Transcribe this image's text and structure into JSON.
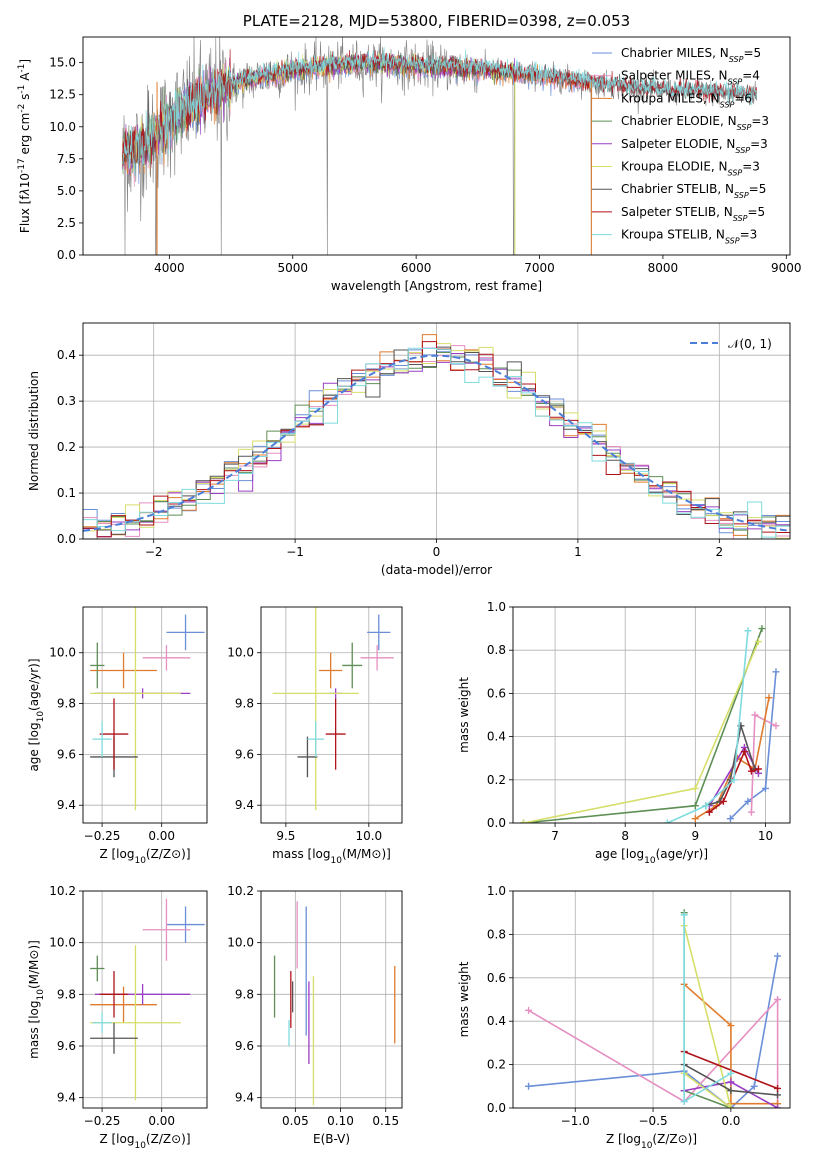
{
  "figure_title": "PLATE=2128, MJD=53800, FIBERID=0398, z=0.053",
  "colors": {
    "Chabrier MILES": "#6a8fd8",
    "Salpeter MILES": "#e58fc2",
    "Kroupa MILES": "#e07b2c",
    "Chabrier ELODIE": "#5e8f55",
    "Salpeter ELODIE": "#9a3fc4",
    "Kroupa ELODIE": "#d6de6a",
    "Chabrier STELIB": "#555555",
    "Salpeter STELIB": "#b0121a",
    "Kroupa STELIB": "#7fdbdf",
    "data_gray": "#808080",
    "normal": "#4a7ed8"
  },
  "chart_data": [
    {
      "id": "spectrum",
      "type": "line",
      "title": "PLATE=2128, MJD=53800, FIBERID=0398, z=0.053",
      "xlabel": "wavelength [Angstrom, rest frame]",
      "ylabel": "Flux [f$_\\lambda$10$^{-17}$ erg cm$^{-2}$ s$^{-1}$ A$^{-1}$]",
      "xlim": [
        3300,
        9030
      ],
      "ylim": [
        0,
        17
      ],
      "xticks": [
        4000,
        5000,
        6000,
        7000,
        8000,
        9000
      ],
      "yticks": [
        0.0,
        2.5,
        5.0,
        7.5,
        10.0,
        12.5,
        15.0
      ],
      "ytick_labels": [
        "0.0",
        "2.5",
        "5.0",
        "7.5",
        "10.0",
        "12.5",
        "15.0"
      ],
      "grid": false,
      "legend_position": "top-right",
      "legend": [
        {
          "name": "Chabrier MILES",
          "label": "Chabrier MILES, N",
          "sub": "SSP",
          "tail": "=5"
        },
        {
          "name": "Salpeter MILES",
          "label": "Salpeter MILES, N",
          "sub": "SSP",
          "tail": "=4"
        },
        {
          "name": "Kroupa MILES",
          "label": "Kroupa MILES, N",
          "sub": "SSP",
          "tail": "=6"
        },
        {
          "name": "Chabrier ELODIE",
          "label": "Chabrier ELODIE, N",
          "sub": "SSP",
          "tail": "=3"
        },
        {
          "name": "Salpeter ELODIE",
          "label": "Salpeter ELODIE, N",
          "sub": "SSP",
          "tail": "=3"
        },
        {
          "name": "Kroupa ELODIE",
          "label": "Kroupa ELODIE, N",
          "sub": "SSP",
          "tail": "=3"
        },
        {
          "name": "Chabrier STELIB",
          "label": "Chabrier STELIB, N",
          "sub": "SSP",
          "tail": "=5"
        },
        {
          "name": "Salpeter STELIB",
          "label": "Salpeter STELIB, N",
          "sub": "SSP",
          "tail": "=5"
        },
        {
          "name": "Kroupa STELIB",
          "label": "Kroupa STELIB, N",
          "sub": "SSP",
          "tail": "=3"
        }
      ],
      "continuum": {
        "x": [
          3620,
          3700,
          3800,
          3900,
          4000,
          4100,
          4200,
          4300,
          4400,
          4500,
          4700,
          4900,
          5100,
          5300,
          5500,
          5700,
          5900,
          6100,
          6300,
          6500,
          6700,
          6900,
          7100,
          7300,
          7500,
          7700,
          7900,
          8100,
          8300,
          8500,
          8750
        ],
        "y": [
          7.8,
          8.0,
          8.6,
          9.5,
          10.4,
          11.2,
          11.9,
          12.3,
          12.8,
          13.2,
          13.8,
          14.2,
          14.5,
          14.7,
          14.9,
          14.9,
          14.8,
          14.7,
          14.6,
          14.5,
          14.3,
          14.1,
          13.9,
          13.6,
          13.3,
          13.1,
          12.9,
          12.8,
          12.7,
          12.6,
          12.5
        ]
      },
      "data_dropouts": [
        3640,
        3890,
        4420,
        5280,
        6790,
        7420
      ]
    },
    {
      "id": "residuals",
      "type": "histogram",
      "xlabel": "(data-model)/error",
      "ylabel": "Normed distribution",
      "xlim": [
        -2.5,
        2.5
      ],
      "ylim": [
        0,
        0.47
      ],
      "xticks": [
        -2,
        -1,
        0,
        1,
        2
      ],
      "xtick_labels": [
        "−2",
        "−1",
        "0",
        "1",
        "2"
      ],
      "yticks": [
        0.0,
        0.1,
        0.2,
        0.3,
        0.4
      ],
      "ytick_labels": [
        "0.0",
        "0.1",
        "0.2",
        "0.3",
        "0.4"
      ],
      "grid": true,
      "legend_position": "top-right",
      "legend_label": "𝒩(0, 1)",
      "bin_width": 0.1,
      "model": "normal(0,1)"
    },
    {
      "id": "age_vs_Z",
      "type": "errorbar",
      "xlabel": "Z [log$_{10}$(Z/Z$_\\odot$)]",
      "ylabel": "age  [log$_{10}$(age/yr)]",
      "xlim": [
        -0.33,
        0.19
      ],
      "ylim": [
        9.33,
        10.18
      ],
      "xticks": [
        -0.25,
        0.0
      ],
      "xtick_labels": [
        "−0.25",
        "0.00"
      ],
      "yticks": [
        9.4,
        9.6,
        9.8,
        10.0
      ],
      "ytick_labels": [
        "9.4",
        "9.6",
        "9.8",
        "10.0"
      ],
      "grid": true,
      "points": [
        {
          "model": "Chabrier MILES",
          "x": 0.1,
          "xerr": 0.08,
          "y": 10.08,
          "yerr": 0.07
        },
        {
          "model": "Salpeter MILES",
          "x": 0.02,
          "xerr": 0.1,
          "y": 9.98,
          "yerr": 0.05
        },
        {
          "model": "Kroupa MILES",
          "x": -0.16,
          "xerr": 0.14,
          "y": 9.93,
          "yerr": 0.07
        },
        {
          "model": "Chabrier ELODIE",
          "x": -0.27,
          "xerr": 0.03,
          "y": 9.95,
          "yerr": 0.09
        },
        {
          "model": "Salpeter ELODIE",
          "x": -0.08,
          "xerr": 0.2,
          "y": 9.84,
          "yerr": 0.02
        },
        {
          "model": "Kroupa ELODIE",
          "x": -0.11,
          "xerr": 0.19,
          "y": 9.84,
          "yerr": 0.46
        },
        {
          "model": "Chabrier STELIB",
          "x": -0.2,
          "xerr": 0.1,
          "y": 9.59,
          "yerr": 0.08
        },
        {
          "model": "Salpeter STELIB",
          "x": -0.2,
          "xerr": 0.06,
          "y": 9.68,
          "yerr": 0.14
        },
        {
          "model": "Kroupa STELIB",
          "x": -0.25,
          "xerr": 0.04,
          "y": 9.66,
          "yerr": 0.07
        }
      ]
    },
    {
      "id": "age_vs_mass",
      "type": "errorbar",
      "xlabel": "mass [log$_{10}$(M/M$_\\odot$)]",
      "ylabel": "",
      "xlim": [
        9.35,
        10.2
      ],
      "ylim": [
        9.33,
        10.18
      ],
      "xticks": [
        9.5,
        10.0
      ],
      "xtick_labels": [
        "9.5",
        "10.0"
      ],
      "yticks": [
        9.4,
        9.6,
        9.8,
        10.0
      ],
      "ytick_labels": [
        "9.4",
        "9.6",
        "9.8",
        "10.0"
      ],
      "grid": true,
      "points": [
        {
          "model": "Chabrier MILES",
          "x": 10.06,
          "xerr": 0.07,
          "y": 10.08,
          "yerr": 0.07
        },
        {
          "model": "Salpeter MILES",
          "x": 10.05,
          "xerr": 0.1,
          "y": 9.98,
          "yerr": 0.05
        },
        {
          "model": "Kroupa MILES",
          "x": 9.77,
          "xerr": 0.07,
          "y": 9.93,
          "yerr": 0.07
        },
        {
          "model": "Chabrier ELODIE",
          "x": 9.9,
          "xerr": 0.06,
          "y": 9.95,
          "yerr": 0.09
        },
        {
          "model": "Salpeter ELODIE",
          "x": 9.8,
          "xerr": 0.04,
          "y": 9.84,
          "yerr": 0.02
        },
        {
          "model": "Kroupa ELODIE",
          "x": 9.68,
          "xerr": 0.26,
          "y": 9.84,
          "yerr": 0.46
        },
        {
          "model": "Chabrier STELIB",
          "x": 9.63,
          "xerr": 0.06,
          "y": 9.59,
          "yerr": 0.08
        },
        {
          "model": "Salpeter STELIB",
          "x": 9.8,
          "xerr": 0.06,
          "y": 9.68,
          "yerr": 0.14
        },
        {
          "model": "Kroupa STELIB",
          "x": 9.68,
          "xerr": 0.05,
          "y": 9.66,
          "yerr": 0.07
        }
      ]
    },
    {
      "id": "weight_vs_age",
      "type": "line",
      "xlabel": "age  [log$_{10}$(age/yr)]",
      "ylabel": "mass weight",
      "xlim": [
        6.4,
        10.35
      ],
      "ylim": [
        0,
        1.0
      ],
      "xticks": [
        7,
        8,
        9,
        10
      ],
      "xtick_labels": [
        "7",
        "8",
        "9",
        "10"
      ],
      "yticks": [
        0.0,
        0.2,
        0.4,
        0.6,
        0.8,
        1.0
      ],
      "ytick_labels": [
        "0.0",
        "0.2",
        "0.4",
        "0.6",
        "0.8",
        "1.0"
      ],
      "grid": true,
      "series": [
        {
          "model": "Chabrier MILES",
          "x": [
            9.5,
            9.75,
            10.0,
            10.15
          ],
          "y": [
            0.02,
            0.1,
            0.16,
            0.7
          ]
        },
        {
          "model": "Salpeter MILES",
          "x": [
            9.8,
            9.85,
            10.15
          ],
          "y": [
            0.05,
            0.5,
            0.45
          ]
        },
        {
          "model": "Kroupa MILES",
          "x": [
            9.0,
            9.3,
            9.6,
            9.85,
            10.05
          ],
          "y": [
            0.02,
            0.08,
            0.3,
            0.25,
            0.58
          ]
        },
        {
          "model": "Chabrier ELODIE",
          "x": [
            6.55,
            9.0,
            9.95
          ],
          "y": [
            0.0,
            0.08,
            0.9
          ]
        },
        {
          "model": "Salpeter ELODIE",
          "x": [
            9.2,
            9.7,
            9.9
          ],
          "y": [
            0.08,
            0.35,
            0.23
          ]
        },
        {
          "model": "Kroupa ELODIE",
          "x": [
            6.55,
            9.0,
            9.9
          ],
          "y": [
            0.0,
            0.16,
            0.84
          ]
        },
        {
          "model": "Chabrier STELIB",
          "x": [
            9.15,
            9.35,
            9.5,
            9.65,
            9.85
          ],
          "y": [
            0.08,
            0.1,
            0.2,
            0.45,
            0.25
          ]
        },
        {
          "model": "Salpeter STELIB",
          "x": [
            9.2,
            9.4,
            9.7,
            9.8,
            9.9
          ],
          "y": [
            0.05,
            0.1,
            0.33,
            0.24,
            0.25
          ]
        },
        {
          "model": "Kroupa STELIB",
          "x": [
            8.6,
            9.15,
            9.55,
            9.75
          ],
          "y": [
            0.0,
            0.08,
            0.2,
            0.89
          ]
        }
      ]
    },
    {
      "id": "mass_vs_Z",
      "type": "errorbar",
      "xlabel": "Z [log$_{10}$(Z/Z$_\\odot$)]",
      "ylabel": "mass [log$_{10}$(M/M$_\\odot$)]",
      "xlim": [
        -0.33,
        0.19
      ],
      "ylim": [
        9.36,
        10.2
      ],
      "xticks": [
        -0.25,
        0.0
      ],
      "xtick_labels": [
        "−0.25",
        "0.00"
      ],
      "yticks": [
        9.4,
        9.6,
        9.8,
        10.0,
        10.2
      ],
      "ytick_labels": [
        "9.4",
        "9.6",
        "9.8",
        "10.0",
        "10.2"
      ],
      "grid": true,
      "points": [
        {
          "model": "Chabrier MILES",
          "x": 0.1,
          "xerr": 0.08,
          "y": 10.07,
          "yerr": 0.07
        },
        {
          "model": "Salpeter MILES",
          "x": 0.02,
          "xerr": 0.1,
          "y": 10.05,
          "yerr": 0.12
        },
        {
          "model": "Kroupa MILES",
          "x": -0.16,
          "xerr": 0.14,
          "y": 9.76,
          "yerr": 0.07
        },
        {
          "model": "Chabrier ELODIE",
          "x": -0.27,
          "xerr": 0.03,
          "y": 9.9,
          "yerr": 0.05
        },
        {
          "model": "Salpeter ELODIE",
          "x": -0.08,
          "xerr": 0.2,
          "y": 9.8,
          "yerr": 0.04
        },
        {
          "model": "Kroupa ELODIE",
          "x": -0.11,
          "xerr": 0.19,
          "y": 9.69,
          "yerr": 0.3
        },
        {
          "model": "Chabrier STELIB",
          "x": -0.2,
          "xerr": 0.1,
          "y": 9.63,
          "yerr": 0.06
        },
        {
          "model": "Salpeter STELIB",
          "x": -0.2,
          "xerr": 0.06,
          "y": 9.8,
          "yerr": 0.09
        },
        {
          "model": "Kroupa STELIB",
          "x": -0.25,
          "xerr": 0.04,
          "y": 9.69,
          "yerr": 0.04
        }
      ]
    },
    {
      "id": "mass_vs_EBV",
      "type": "errorbar",
      "xlabel": "E(B-V)",
      "ylabel": "",
      "xlim": [
        0.012,
        0.168
      ],
      "ylim": [
        9.36,
        10.2
      ],
      "xticks": [
        0.05,
        0.1,
        0.15
      ],
      "xtick_labels": [
        "0.05",
        "0.10",
        "0.15"
      ],
      "yticks": [
        9.4,
        9.6,
        9.8,
        10.0,
        10.2
      ],
      "ytick_labels": [
        "9.4",
        "9.6",
        "9.8",
        "10.0",
        "10.2"
      ],
      "grid": true,
      "points": [
        {
          "model": "Chabrier MILES",
          "x": 0.062,
          "y": 9.89,
          "yerr": 0.25
        },
        {
          "model": "Salpeter MILES",
          "x": 0.052,
          "y": 10.03,
          "yerr": 0.13
        },
        {
          "model": "Kroupa MILES",
          "x": 0.16,
          "y": 9.76,
          "yerr": 0.15
        },
        {
          "model": "Chabrier ELODIE",
          "x": 0.027,
          "y": 9.83,
          "yerr": 0.12
        },
        {
          "model": "Salpeter ELODIE",
          "x": 0.065,
          "y": 9.69,
          "yerr": 0.16
        },
        {
          "model": "Kroupa ELODIE",
          "x": 0.07,
          "y": 9.62,
          "yerr": 0.25
        },
        {
          "model": "Chabrier STELIB",
          "x": 0.047,
          "y": 9.79,
          "yerr": 0.06
        },
        {
          "model": "Salpeter STELIB",
          "x": 0.045,
          "y": 9.78,
          "yerr": 0.11
        },
        {
          "model": "Kroupa STELIB",
          "x": 0.043,
          "y": 9.65,
          "yerr": 0.05
        }
      ]
    },
    {
      "id": "weight_vs_Z",
      "type": "line",
      "xlabel": "Z [log$_{10}$(Z/Z$_\\odot$)]",
      "ylabel": "mass weight",
      "xlim": [
        -1.4,
        0.38
      ],
      "ylim": [
        0,
        1.0
      ],
      "xticks": [
        -1.0,
        -0.5,
        0.0
      ],
      "xtick_labels": [
        "−1.0",
        "−0.5",
        "0.0"
      ],
      "yticks": [
        0.0,
        0.2,
        0.4,
        0.6,
        0.8,
        1.0
      ],
      "ytick_labels": [
        "0.0",
        "0.2",
        "0.4",
        "0.6",
        "0.8",
        "1.0"
      ],
      "grid": true,
      "series": [
        {
          "model": "Chabrier MILES",
          "x": [
            -1.3,
            -0.3,
            0.0,
            0.15,
            0.3
          ],
          "y": [
            0.1,
            0.17,
            0.0,
            0.1,
            0.7
          ]
        },
        {
          "model": "Salpeter MILES",
          "x": [
            -1.3,
            -0.3,
            0.3,
            0.3
          ],
          "y": [
            0.45,
            0.03,
            0.5,
            0.02
          ]
        },
        {
          "model": "Kroupa MILES",
          "x": [
            -0.3,
            0.0,
            0.0,
            0.3
          ],
          "y": [
            0.57,
            0.38,
            0.02,
            0.02
          ]
        },
        {
          "model": "Chabrier ELODIE",
          "x": [
            -0.3,
            -0.3,
            0.0
          ],
          "y": [
            0.9,
            0.08,
            0.0
          ]
        },
        {
          "model": "Salpeter ELODIE",
          "x": [
            -0.3,
            0.0,
            0.3
          ],
          "y": [
            0.08,
            0.12,
            0.0
          ]
        },
        {
          "model": "Kroupa ELODIE",
          "x": [
            -0.3,
            0.0,
            -0.3
          ],
          "y": [
            0.84,
            0.0,
            0.16
          ]
        },
        {
          "model": "Chabrier STELIB",
          "x": [
            -0.3,
            0.0,
            0.3
          ],
          "y": [
            0.2,
            0.08,
            0.06
          ]
        },
        {
          "model": "Salpeter STELIB",
          "x": [
            -0.3,
            0.3
          ],
          "y": [
            0.26,
            0.09
          ]
        },
        {
          "model": "Kroupa STELIB",
          "x": [
            -0.3,
            -0.3,
            0.0
          ],
          "y": [
            0.89,
            0.03,
            0.16
          ]
        }
      ]
    }
  ]
}
